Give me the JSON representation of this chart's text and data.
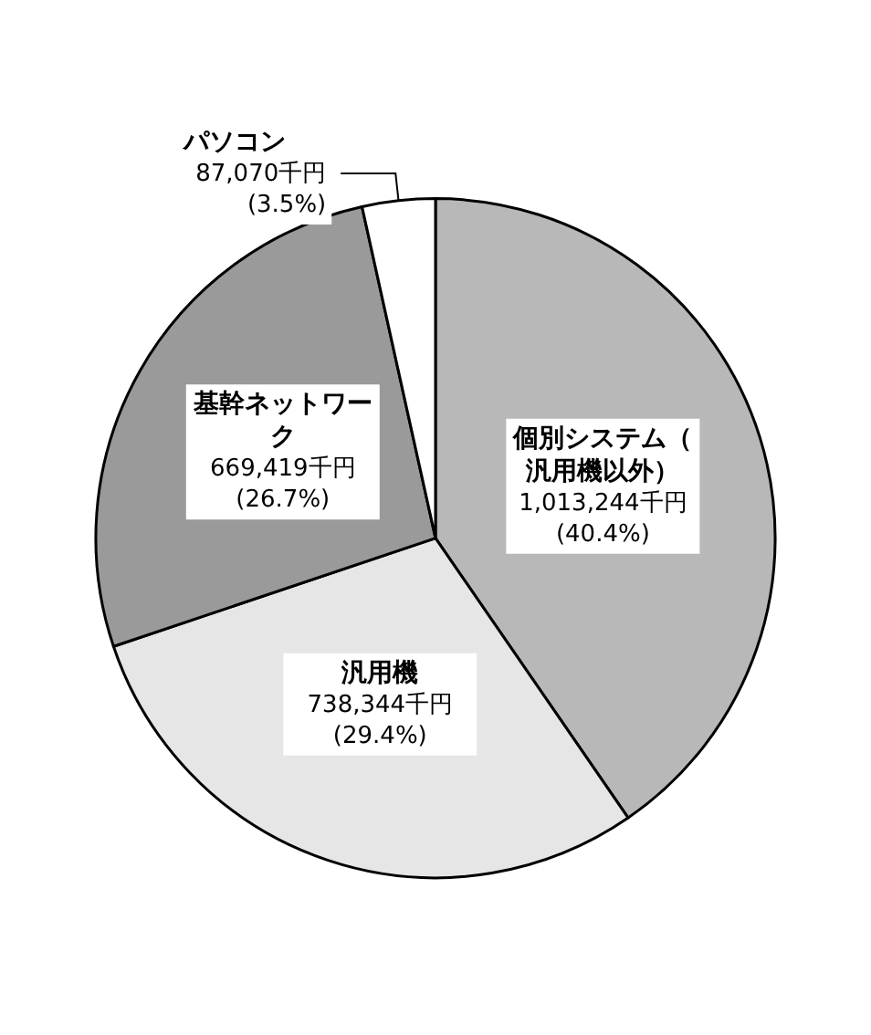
{
  "chart_data": {
    "type": "pie",
    "categories": [
      "個別システム（汎用機以外）",
      "汎用機",
      "基幹ネットワーク",
      "パソコン"
    ],
    "values": [
      1013244,
      738344,
      669419,
      87070
    ],
    "value_labels": [
      "1,013,244千円\n(40.4%)",
      "738,344千円\n(29.4%)",
      "669,419千円\n(26.7%)",
      "87,070千円\n(3.5%)"
    ],
    "colors": [
      "#b8b8b8",
      "#e6e6e6",
      "#9a9a9a",
      "#ffffff"
    ]
  }
}
